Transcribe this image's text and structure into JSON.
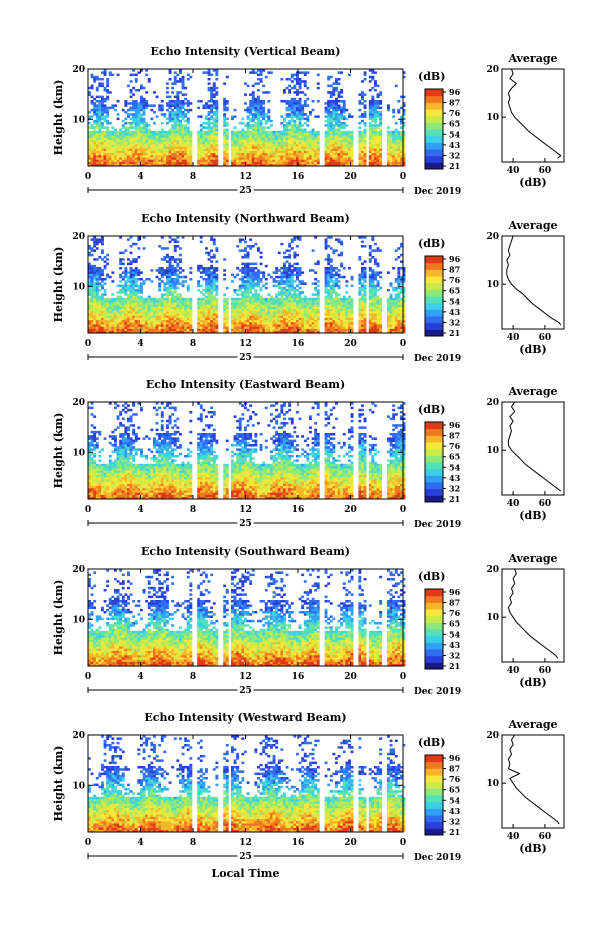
{
  "figure": {
    "xlabel_bottom": "Local Time",
    "date_label": "Dec 2019",
    "day_label": "25",
    "colorbar_unit": "(dB)",
    "colorbar_ticks": [
      "96",
      "87",
      "76",
      "65",
      "54",
      "43",
      "32",
      "21"
    ],
    "colors": [
      "#1a1a8c",
      "#2a3fd9",
      "#2f6cf0",
      "#32a0f5",
      "#3ccfe8",
      "#55e0b8",
      "#8ee87a",
      "#c8ea4a",
      "#f5e83a",
      "#f7b52a",
      "#f07820",
      "#e03a18"
    ]
  },
  "chart_data": [
    {
      "type": "heatmap",
      "title": "Echo Intensity (Vertical Beam)",
      "ylabel": "Height (km)",
      "xticks": [
        "0",
        "4",
        "8",
        "12",
        "16",
        "20",
        "0"
      ],
      "yticks": [
        "20",
        "10"
      ],
      "xlim": [
        0,
        24
      ],
      "ylim": [
        0.7,
        20
      ],
      "colorbar": {
        "min": 21,
        "max": 96
      },
      "profile": {
        "title": "Average",
        "xlabel": "(dB)",
        "xticks": [
          "40",
          "60"
        ],
        "yticks": [
          "20",
          "10"
        ],
        "xlim": [
          33,
          72
        ],
        "height_km": [
          1.5,
          2,
          3,
          4,
          5,
          6,
          7,
          8,
          9,
          10,
          11,
          12,
          13,
          14,
          15,
          16,
          17,
          18,
          19,
          20
        ],
        "values_db": [
          68,
          70,
          66,
          62,
          58,
          54,
          50,
          47,
          44,
          41,
          39,
          38,
          37,
          38,
          37,
          39,
          42,
          38,
          40,
          39
        ]
      }
    },
    {
      "type": "heatmap",
      "title": "Echo Intensity (Northward Beam)",
      "ylabel": "Height (km)",
      "xticks": [
        "0",
        "4",
        "8",
        "12",
        "16",
        "20",
        "0"
      ],
      "yticks": [
        "20",
        "10"
      ],
      "xlim": [
        0,
        24
      ],
      "ylim": [
        0.7,
        20
      ],
      "colorbar": {
        "min": 21,
        "max": 96
      },
      "profile": {
        "title": "Average",
        "xlabel": "(dB)",
        "xticks": [
          "40",
          "60"
        ],
        "yticks": [
          "20",
          "10"
        ],
        "xlim": [
          33,
          72
        ],
        "height_km": [
          1.5,
          2,
          3,
          4,
          5,
          6,
          7,
          8,
          9,
          10,
          11,
          12,
          13,
          14,
          15,
          16,
          17,
          18,
          19,
          20
        ],
        "values_db": [
          70,
          69,
          64,
          60,
          56,
          52,
          49,
          46,
          42,
          39,
          37,
          36,
          36,
          37,
          36,
          38,
          37,
          38,
          39,
          40
        ]
      }
    },
    {
      "type": "heatmap",
      "title": "Echo Intensity (Eastward Beam)",
      "ylabel": "Height (km)",
      "xticks": [
        "0",
        "4",
        "8",
        "12",
        "16",
        "20",
        "0"
      ],
      "yticks": [
        "20",
        "10"
      ],
      "xlim": [
        0,
        24
      ],
      "ylim": [
        0.7,
        20
      ],
      "colorbar": {
        "min": 21,
        "max": 96
      },
      "profile": {
        "title": "Average",
        "xlabel": "(dB)",
        "xticks": [
          "40",
          "60"
        ],
        "yticks": [
          "20",
          "10"
        ],
        "xlim": [
          33,
          72
        ],
        "height_km": [
          1.5,
          2,
          3,
          4,
          5,
          6,
          7,
          8,
          9,
          10,
          11,
          12,
          13,
          14,
          15,
          16,
          17,
          18,
          19,
          20
        ],
        "values_db": [
          70,
          68,
          64,
          60,
          56,
          52,
          48,
          45,
          42,
          39,
          37,
          37,
          38,
          39,
          38,
          40,
          38,
          41,
          39,
          41
        ]
      }
    },
    {
      "type": "heatmap",
      "title": "Echo Intensity (Southward Beam)",
      "ylabel": "Height (km)",
      "xticks": [
        "0",
        "4",
        "8",
        "12",
        "16",
        "20",
        "0"
      ],
      "yticks": [
        "20",
        "10"
      ],
      "xlim": [
        0,
        24
      ],
      "ylim": [
        0.7,
        20
      ],
      "colorbar": {
        "min": 21,
        "max": 96
      },
      "profile": {
        "title": "Average",
        "xlabel": "(dB)",
        "xticks": [
          "40",
          "60"
        ],
        "yticks": [
          "20",
          "10"
        ],
        "xlim": [
          33,
          72
        ],
        "height_km": [
          1.5,
          2,
          3,
          4,
          5,
          6,
          7,
          8,
          9,
          10,
          11,
          12,
          13,
          14,
          15,
          16,
          17,
          18,
          19,
          20
        ],
        "values_db": [
          68,
          67,
          63,
          59,
          55,
          51,
          48,
          45,
          42,
          40,
          38,
          37,
          39,
          38,
          40,
          39,
          41,
          40,
          42,
          41
        ]
      }
    },
    {
      "type": "heatmap",
      "title": "Echo Intensity (Westward Beam)",
      "ylabel": "Height (km)",
      "xticks": [
        "0",
        "4",
        "8",
        "12",
        "16",
        "20",
        "0"
      ],
      "yticks": [
        "20",
        "10"
      ],
      "xlim": [
        0,
        24
      ],
      "ylim": [
        0.7,
        20
      ],
      "colorbar": {
        "min": 21,
        "max": 96
      },
      "profile": {
        "title": "Average",
        "xlabel": "(dB)",
        "xticks": [
          "40",
          "60"
        ],
        "yticks": [
          "20",
          "10"
        ],
        "xlim": [
          33,
          72
        ],
        "height_km": [
          1.5,
          2,
          3,
          4,
          5,
          6,
          7,
          8,
          9,
          10,
          11,
          12,
          13,
          14,
          15,
          16,
          17,
          18,
          19,
          20
        ],
        "values_db": [
          69,
          68,
          64,
          60,
          56,
          52,
          48,
          45,
          42,
          40,
          38,
          44,
          37,
          38,
          37,
          39,
          38,
          40,
          39,
          41
        ]
      }
    }
  ]
}
